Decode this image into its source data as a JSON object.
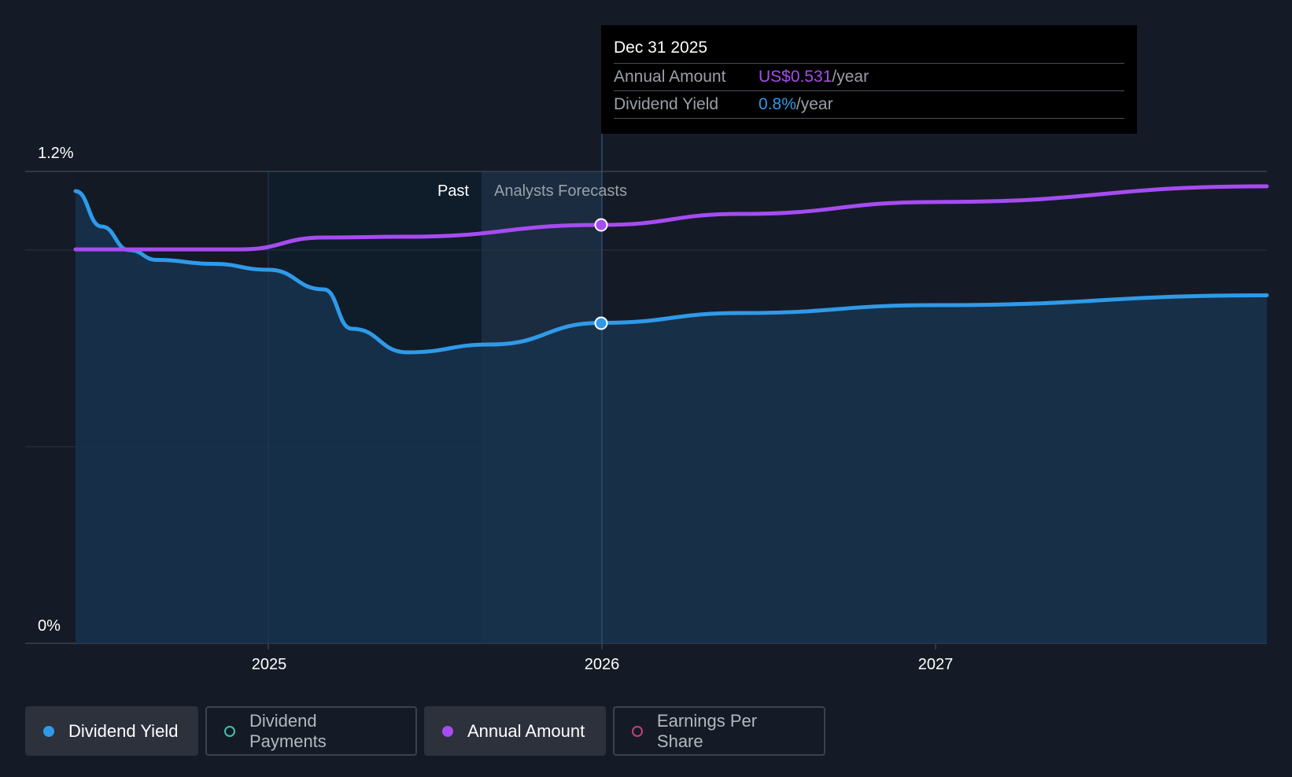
{
  "chart_data": {
    "type": "line",
    "y_axis": {
      "ticks": [
        "1.2%",
        "0%"
      ],
      "ylim_percent": [
        0,
        1.2
      ]
    },
    "x_axis": {
      "ticks": [
        "2025",
        "2026",
        "2027"
      ]
    },
    "regions": {
      "past_label": "Past",
      "forecast_label": "Analysts Forecasts"
    },
    "series": [
      {
        "name": "Dividend Yield",
        "color": "#2f9ae8",
        "unit": "%",
        "points": [
          {
            "x": "2024-06",
            "y": 1.15
          },
          {
            "x": "2024-07",
            "y": 1.06
          },
          {
            "x": "2024-08",
            "y": 1.0
          },
          {
            "x": "2024-09",
            "y": 0.975
          },
          {
            "x": "2024-11",
            "y": 0.965
          },
          {
            "x": "2025-01",
            "y": 0.95
          },
          {
            "x": "2025-03",
            "y": 0.9
          },
          {
            "x": "2025-04",
            "y": 0.8
          },
          {
            "x": "2025-06",
            "y": 0.74
          },
          {
            "x": "2025-09",
            "y": 0.76
          },
          {
            "x": "2025-12-31",
            "y": 0.815
          },
          {
            "x": "2026-06",
            "y": 0.84
          },
          {
            "x": "2027-01",
            "y": 0.86
          },
          {
            "x": "2027-12",
            "y": 0.885
          }
        ]
      },
      {
        "name": "Annual Amount",
        "color": "#a64cf2",
        "unit": "US$",
        "points": [
          {
            "x": "2024-06",
            "y": 0.5
          },
          {
            "x": "2024-12",
            "y": 0.5
          },
          {
            "x": "2025-03",
            "y": 0.515
          },
          {
            "x": "2025-06",
            "y": 0.516
          },
          {
            "x": "2025-12-31",
            "y": 0.531
          },
          {
            "x": "2026-06",
            "y": 0.545
          },
          {
            "x": "2027-01",
            "y": 0.56
          },
          {
            "x": "2027-12",
            "y": 0.58
          }
        ]
      }
    ]
  },
  "tooltip": {
    "date": "Dec 31 2025",
    "rows": [
      {
        "label": "Annual Amount",
        "value": "US$0.531",
        "suffix": "/year"
      },
      {
        "label": "Dividend Yield",
        "value": "0.8%",
        "suffix": "/year"
      }
    ]
  },
  "legend": [
    {
      "label": "Dividend Yield",
      "color": "#2f9ae8",
      "active": true,
      "filled": true
    },
    {
      "label": "Dividend Payments",
      "color": "#3fc1b0",
      "active": false,
      "filled": false
    },
    {
      "label": "Annual Amount",
      "color": "#a64cf2",
      "active": true,
      "filled": true
    },
    {
      "label": "Earnings Per Share",
      "color": "#c2407a",
      "active": false,
      "filled": false
    }
  ],
  "colors": {
    "background": "#151b26",
    "grid": "#2c3340",
    "past_region": "#0f1b29",
    "forecast_region": "#1a2b3f",
    "yield_area": "#173049"
  }
}
